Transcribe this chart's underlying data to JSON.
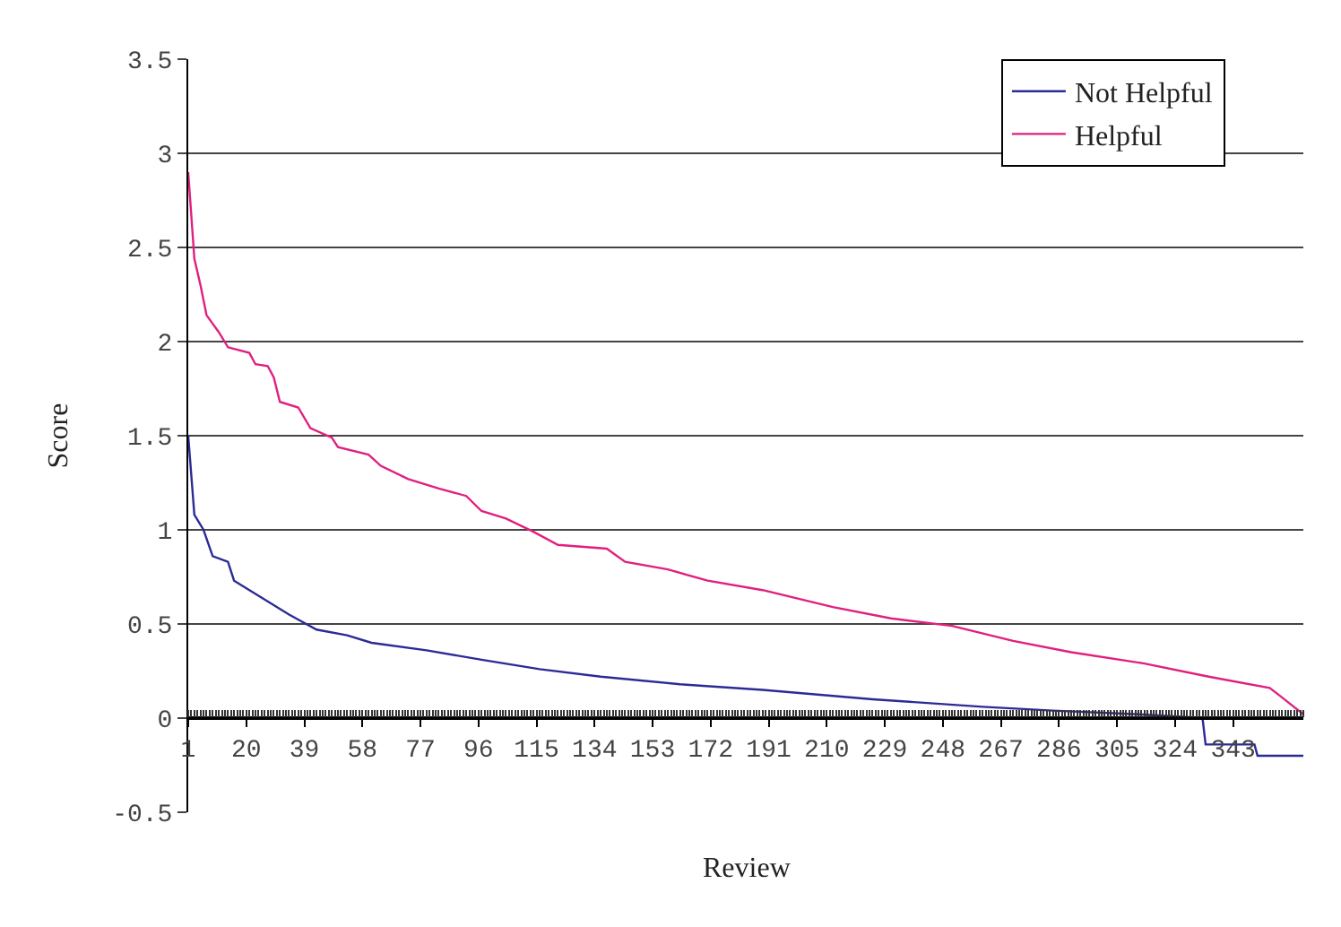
{
  "chart_data": {
    "type": "line",
    "xlabel": "Review",
    "ylabel": "Score",
    "xlim": [
      1,
      366
    ],
    "xticks": [
      1,
      20,
      39,
      58,
      77,
      96,
      115,
      134,
      153,
      172,
      191,
      210,
      229,
      248,
      267,
      286,
      305,
      324,
      343
    ],
    "ylim": [
      -0.5,
      3.5
    ],
    "yticks": [
      -0.5,
      0,
      0.5,
      1,
      1.5,
      2,
      2.5,
      3,
      3.5
    ],
    "grid": "y",
    "legend": "top right",
    "marker": "none",
    "line_style": "solid",
    "series": [
      {
        "name": "Not Helpful",
        "color": "#2b2b96",
        "x": [
          1,
          3,
          6,
          9,
          14,
          16,
          24,
          34,
          43,
          53,
          61,
          79,
          97,
          116,
          136,
          162,
          189,
          225,
          261,
          284,
          312,
          333,
          334,
          350,
          351,
          366
        ],
        "values": [
          1.5,
          1.08,
          1.0,
          0.86,
          0.83,
          0.73,
          0.65,
          0.55,
          0.47,
          0.44,
          0.4,
          0.36,
          0.31,
          0.26,
          0.22,
          0.18,
          0.15,
          0.1,
          0.06,
          0.04,
          0.02,
          0.0,
          -0.14,
          -0.14,
          -0.2,
          -0.2
        ]
      },
      {
        "name": "Helpful",
        "color": "#e0207f",
        "x": [
          1,
          3,
          5,
          7,
          11,
          14,
          21,
          23,
          27,
          29,
          31,
          37,
          41,
          48,
          50,
          60,
          64,
          73,
          83,
          92,
          97,
          105,
          114,
          122,
          138,
          144,
          158,
          171,
          189,
          212,
          231,
          251,
          271,
          290,
          314,
          335,
          355,
          359,
          366
        ],
        "values": [
          2.9,
          2.44,
          2.3,
          2.14,
          2.05,
          1.97,
          1.94,
          1.88,
          1.87,
          1.81,
          1.68,
          1.65,
          1.54,
          1.49,
          1.44,
          1.4,
          1.34,
          1.27,
          1.22,
          1.18,
          1.1,
          1.06,
          0.99,
          0.92,
          0.9,
          0.83,
          0.79,
          0.73,
          0.68,
          0.59,
          0.53,
          0.49,
          0.41,
          0.35,
          0.29,
          0.22,
          0.16,
          0.11,
          0.02
        ]
      }
    ]
  }
}
